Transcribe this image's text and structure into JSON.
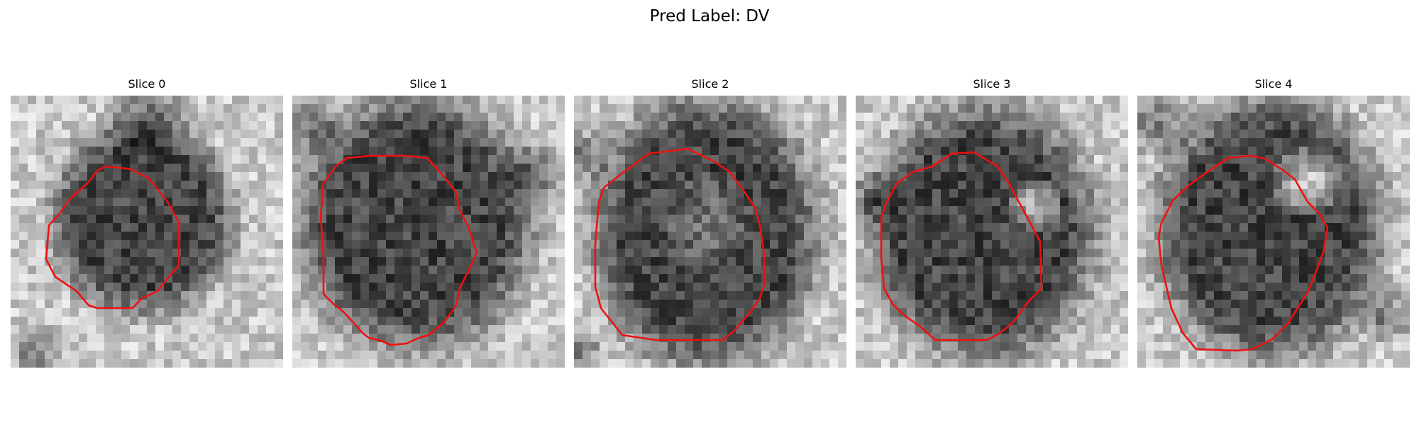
{
  "figure": {
    "title": "Pred Label: DV",
    "panels": [
      {
        "label": "Slice 0"
      },
      {
        "label": "Slice 1"
      },
      {
        "label": "Slice 2"
      },
      {
        "label": "Slice 3"
      },
      {
        "label": "Slice 4"
      }
    ]
  },
  "colors": {
    "contour": "#ee1111",
    "background": "#ffffff"
  },
  "icons": []
}
